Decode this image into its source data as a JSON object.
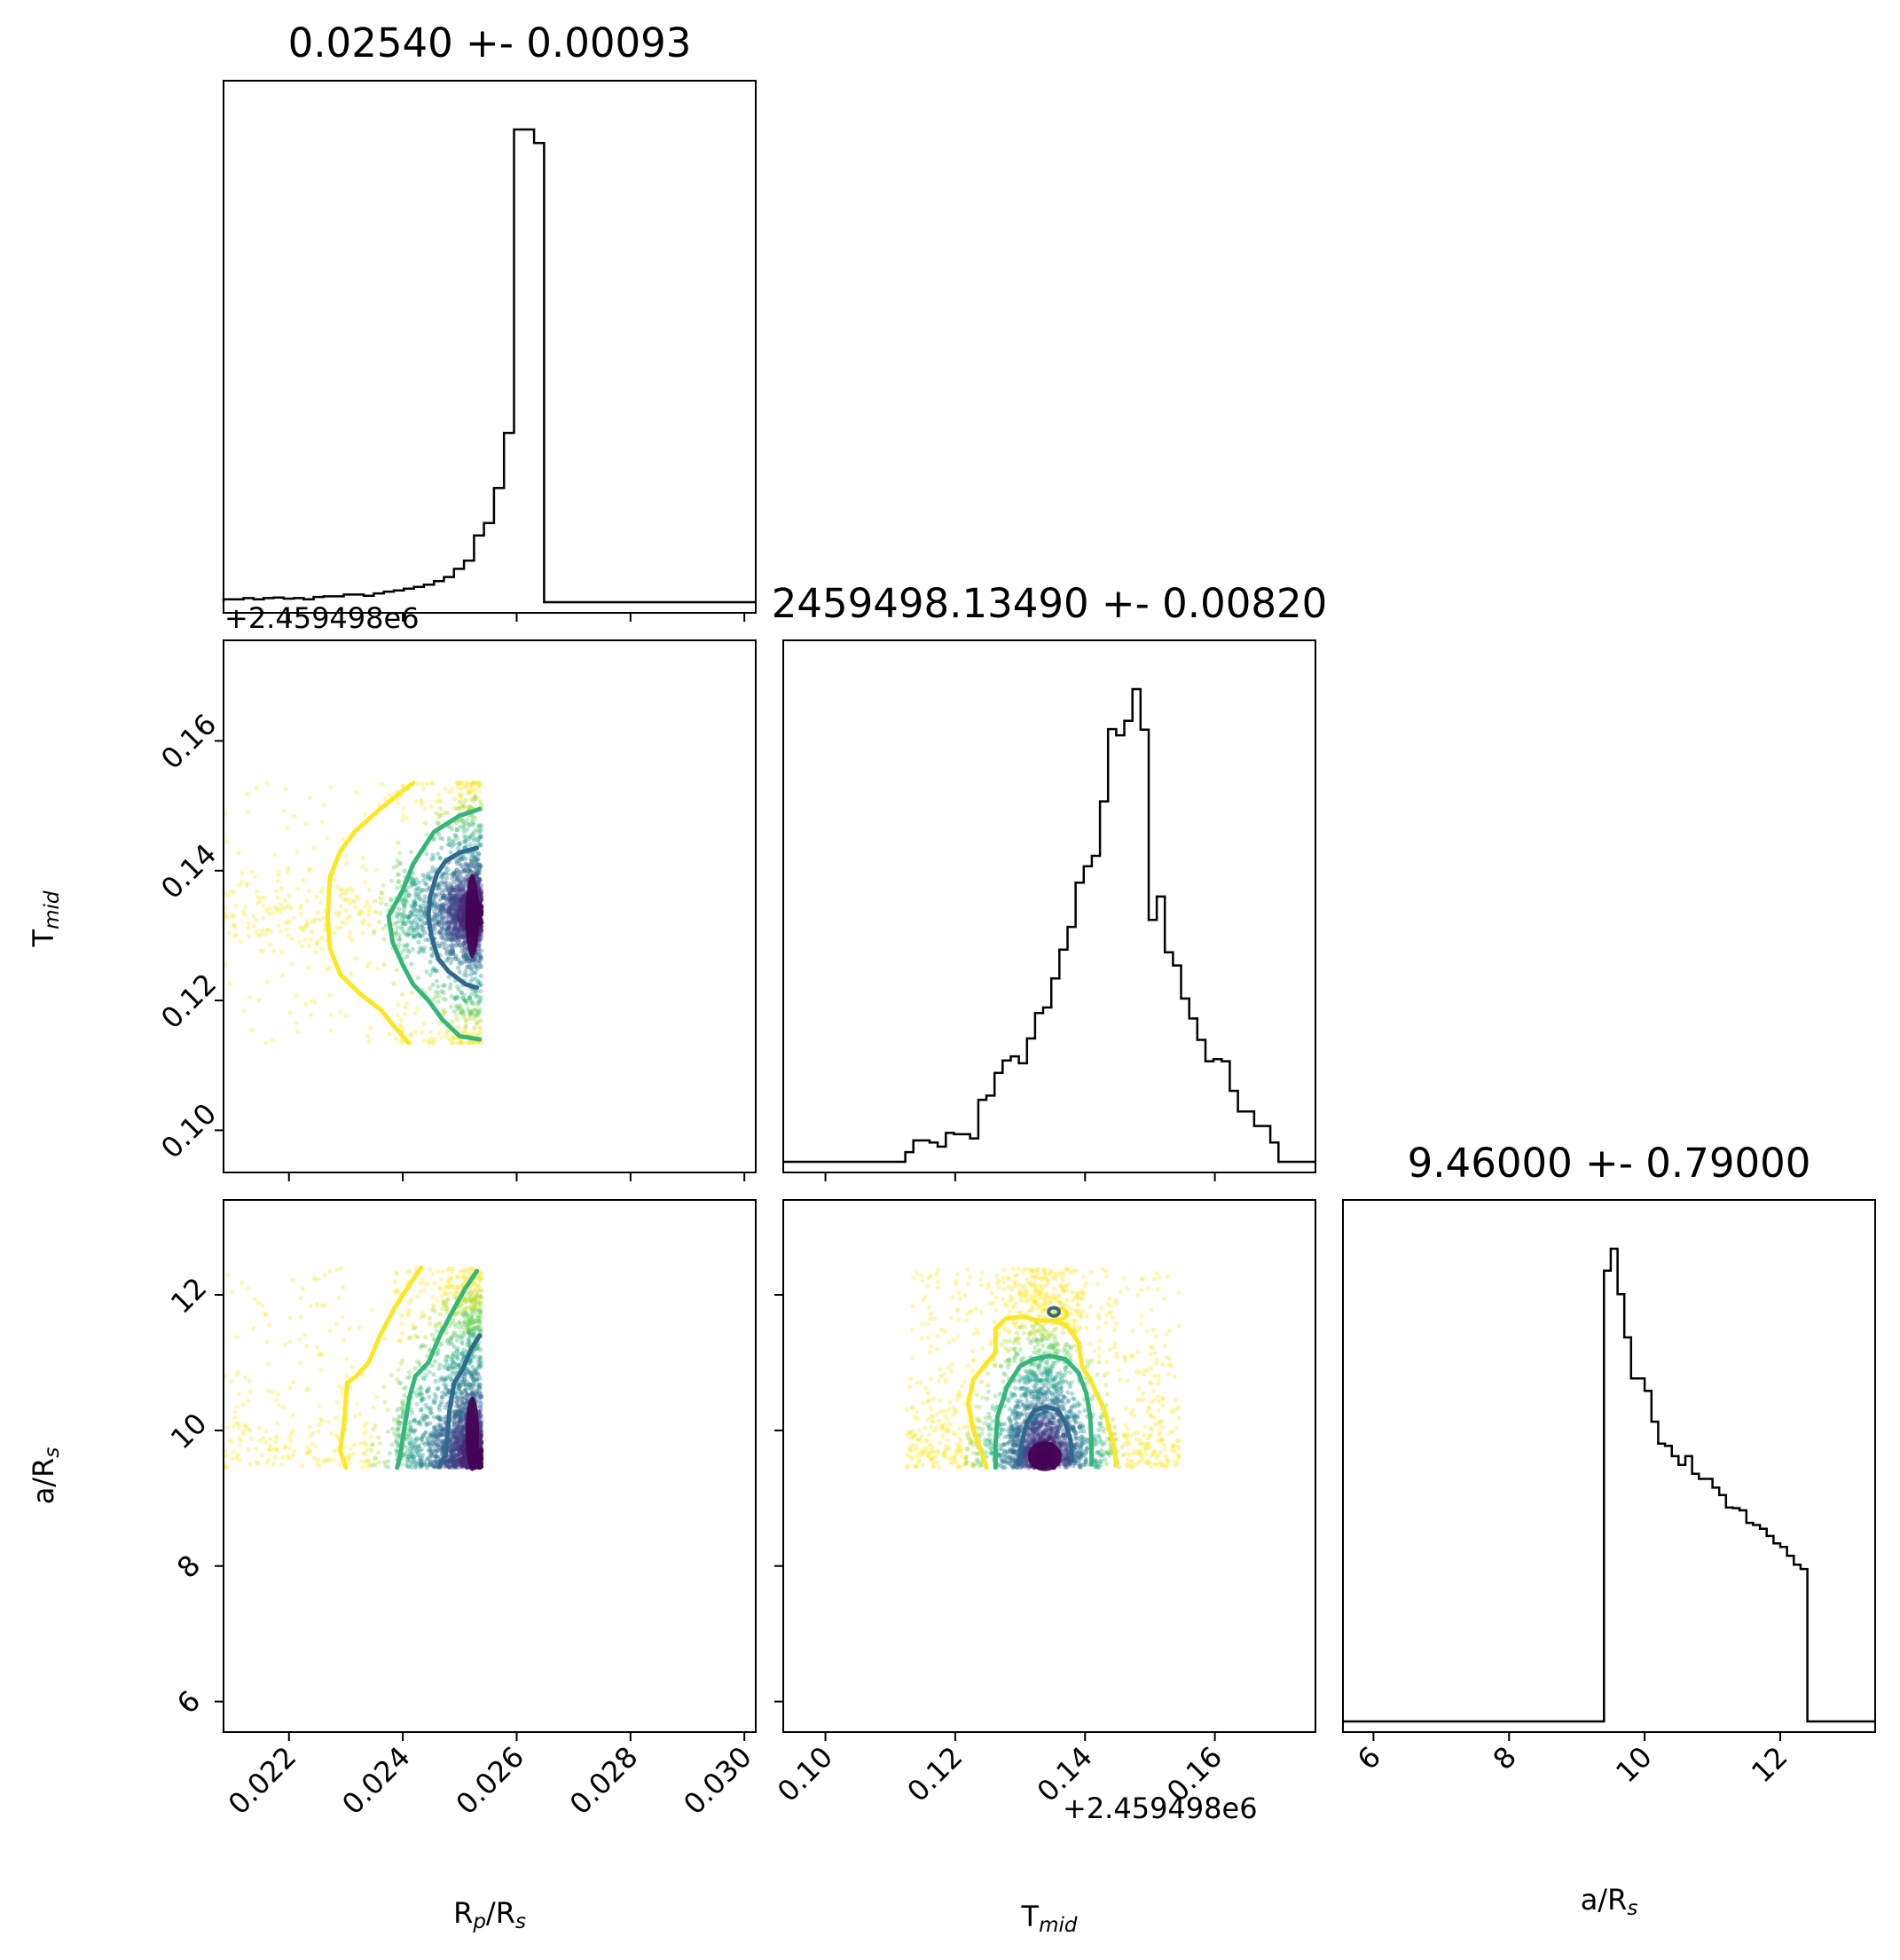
{
  "chart_data": {
    "type": "corner",
    "parameters": [
      {
        "name": "Rp/Rs",
        "label_main": "R",
        "label_sub": "p",
        "label_tail": "/R",
        "label_sub2": "s"
      },
      {
        "name": "Tmid",
        "label_main": "T",
        "label_sub": "mid",
        "label_tail": "",
        "label_sub2": ""
      },
      {
        "name": "a/Rs",
        "label_main": "a/R",
        "label_sub": "s",
        "label_tail": "",
        "label_sub2": ""
      }
    ],
    "titles": [
      "0.02540 +- 0.00093",
      "2459498.13490 +- 0.00820",
      "9.46000 +- 0.79000"
    ],
    "ranges": [
      [
        0.02085,
        0.0302
      ],
      [
        0.0935,
        0.1755
      ],
      [
        5.55,
        13.4
      ]
    ],
    "ticks": [
      [
        "0.022",
        "0.024",
        "0.026",
        "0.028",
        "0.030"
      ],
      [
        "0.10",
        "0.12",
        "0.14",
        "0.16"
      ],
      [
        "6",
        "8",
        "10",
        "12"
      ]
    ],
    "offset_text": "+2.459498e6",
    "hist_1": {
      "edges_start": 0.02085,
      "bin_width": 0.000176,
      "counts": [
        0.5,
        0.5,
        0.7,
        0.5,
        0.7,
        0.8,
        0.6,
        0.7,
        0.5,
        0.9,
        1.0,
        1.0,
        1.3,
        1.3,
        1.1,
        1.5,
        1.8,
        2.0,
        2.3,
        2.6,
        3.0,
        3.6,
        4.3,
        5.7,
        7.1,
        11.4,
        13.5,
        19.5,
        28.9,
        80.7,
        80.7,
        78.4
      ]
    },
    "hist_2": {
      "edges_start": 0.1123,
      "bin_width": 0.00125,
      "counts": [
        1.4,
        3.1,
        3.1,
        2.8,
        2.2,
        4.2,
        4.0,
        4.0,
        3.4,
        9.0,
        9.6,
        12.9,
        14.7,
        15.3,
        14.3,
        17.9,
        21.6,
        22.4,
        26.6,
        30.8,
        34.1,
        40.5,
        42.9,
        44.4,
        52.3,
        62.8,
        61.9,
        64.0,
        68.6,
        62.7,
        35.1,
        38.5,
        30.4,
        28.5,
        23.7,
        20.8,
        17.7,
        14.6,
        14.9,
        14.6,
        10.3,
        7.3,
        7.3,
        5.2,
        5.2,
        2.8
      ]
    },
    "hist_3": {
      "edges_start": 9.4,
      "bin_width": 0.1,
      "counts": [
        61.5,
        64.5,
        58.3,
        52.4,
        46.8,
        46.8,
        45.1,
        40.9,
        37.9,
        37.6,
        36.2,
        35.0,
        36.2,
        33.8,
        33.1,
        33.1,
        31.9,
        30.9,
        29.2,
        29.1,
        28.8,
        27.1,
        26.8,
        26.3,
        25.3,
        24.3,
        23.8,
        22.6,
        21.4,
        20.8
      ]
    },
    "contour_rp_tmid": [
      {
        "level": "outer",
        "color": "#fde725",
        "points": [
          [
            0.02418,
            0.1535
          ],
          [
            0.02395,
            0.152
          ],
          [
            0.0236,
            0.1495
          ],
          [
            0.02315,
            0.146
          ],
          [
            0.0229,
            0.143
          ],
          [
            0.02272,
            0.139
          ],
          [
            0.02268,
            0.133
          ],
          [
            0.02272,
            0.128
          ],
          [
            0.0229,
            0.124
          ],
          [
            0.02325,
            0.121
          ],
          [
            0.02362,
            0.1185
          ],
          [
            0.02385,
            0.116
          ],
          [
            0.0241,
            0.1135
          ]
        ]
      },
      {
        "level": "middle",
        "color": "#35b779",
        "points": [
          [
            0.02535,
            0.1495
          ],
          [
            0.025,
            0.1485
          ],
          [
            0.02455,
            0.146
          ],
          [
            0.0244,
            0.144
          ],
          [
            0.02418,
            0.141
          ],
          [
            0.024,
            0.137
          ],
          [
            0.02375,
            0.133
          ],
          [
            0.02382,
            0.129
          ],
          [
            0.024,
            0.1255
          ],
          [
            0.02418,
            0.1225
          ],
          [
            0.02445,
            0.12
          ],
          [
            0.0247,
            0.117
          ],
          [
            0.025,
            0.1145
          ],
          [
            0.02535,
            0.114
          ]
        ]
      },
      {
        "level": "inner",
        "color": "#31688e",
        "points": [
          [
            0.0253,
            0.1435
          ],
          [
            0.025,
            0.1428
          ],
          [
            0.02475,
            0.1415
          ],
          [
            0.0246,
            0.1395
          ],
          [
            0.02448,
            0.136
          ],
          [
            0.02445,
            0.133
          ],
          [
            0.0245,
            0.13
          ],
          [
            0.02462,
            0.1265
          ],
          [
            0.0248,
            0.1245
          ],
          [
            0.0251,
            0.1225
          ],
          [
            0.0253,
            0.122
          ]
        ]
      }
    ],
    "contour_rp_a": [
      {
        "level": "outer",
        "color": "#fde725",
        "points": [
          [
            0.02432,
            12.4
          ],
          [
            0.02408,
            12.1
          ],
          [
            0.02385,
            11.8
          ],
          [
            0.0236,
            11.4
          ],
          [
            0.0234,
            11.0
          ],
          [
            0.02318,
            10.8
          ],
          [
            0.02302,
            10.7
          ],
          [
            0.02298,
            10.2
          ],
          [
            0.0229,
            9.7
          ],
          [
            0.023,
            9.45
          ]
        ]
      },
      {
        "level": "middle",
        "color": "#35b779",
        "points": [
          [
            0.0253,
            12.35
          ],
          [
            0.0251,
            12.1
          ],
          [
            0.0249,
            11.8
          ],
          [
            0.02465,
            11.4
          ],
          [
            0.02445,
            11.0
          ],
          [
            0.02422,
            10.8
          ],
          [
            0.02412,
            10.5
          ],
          [
            0.02402,
            10.0
          ],
          [
            0.02395,
            9.6
          ],
          [
            0.0239,
            9.45
          ]
        ]
      },
      {
        "level": "inner",
        "color": "#31688e",
        "points": [
          [
            0.02535,
            11.4
          ],
          [
            0.0252,
            11.2
          ],
          [
            0.02505,
            10.9
          ],
          [
            0.0249,
            10.7
          ],
          [
            0.02482,
            10.3
          ],
          [
            0.02478,
            9.9
          ],
          [
            0.02475,
            9.65
          ],
          [
            0.02465,
            9.48
          ]
        ]
      }
    ],
    "contour_tmid_a": [
      {
        "level": "outer",
        "color": "#fde725",
        "points": [
          [
            0.1248,
            9.45
          ],
          [
            0.124,
            9.7
          ],
          [
            0.1228,
            10.0
          ],
          [
            0.122,
            10.4
          ],
          [
            0.1228,
            10.75
          ],
          [
            0.1245,
            10.95
          ],
          [
            0.1262,
            11.15
          ],
          [
            0.1262,
            11.5
          ],
          [
            0.1278,
            11.65
          ],
          [
            0.1305,
            11.68
          ],
          [
            0.1328,
            11.62
          ],
          [
            0.135,
            11.62
          ],
          [
            0.1372,
            11.55
          ],
          [
            0.139,
            11.3
          ],
          [
            0.1395,
            10.95
          ],
          [
            0.1408,
            10.75
          ],
          [
            0.142,
            10.5
          ],
          [
            0.143,
            10.3
          ],
          [
            0.1438,
            10.0
          ],
          [
            0.1445,
            9.75
          ],
          [
            0.1448,
            9.5
          ]
        ]
      },
      {
        "level": "middle",
        "color": "#35b779",
        "points": [
          [
            0.1262,
            9.45
          ],
          [
            0.1262,
            9.8
          ],
          [
            0.1265,
            10.2
          ],
          [
            0.128,
            10.65
          ],
          [
            0.13,
            10.95
          ],
          [
            0.132,
            11.05
          ],
          [
            0.1345,
            11.1
          ],
          [
            0.137,
            11.05
          ],
          [
            0.139,
            10.85
          ],
          [
            0.1402,
            10.55
          ],
          [
            0.1408,
            10.2
          ],
          [
            0.141,
            9.8
          ],
          [
            0.141,
            9.5
          ]
        ]
      },
      {
        "level": "inner",
        "color": "#31688e",
        "points": [
          [
            0.1298,
            9.5
          ],
          [
            0.1302,
            9.8
          ],
          [
            0.131,
            10.1
          ],
          [
            0.1322,
            10.3
          ],
          [
            0.134,
            10.35
          ],
          [
            0.1358,
            10.3
          ],
          [
            0.137,
            10.1
          ],
          [
            0.1378,
            9.85
          ],
          [
            0.138,
            9.55
          ]
        ]
      }
    ],
    "small_contour_tmid_a": {
      "color": "#fde725",
      "center": [
        0.1362,
        11.72
      ],
      "r": [
        0.001,
        0.08
      ]
    },
    "small_contour_tmid_a_2": {
      "color": "#31688e",
      "center": [
        0.1352,
        11.75
      ],
      "r": [
        0.0008,
        0.06
      ]
    },
    "scatter_support": {
      "rp": [
        0.02085,
        0.02538
      ],
      "tmid": [
        0.1135,
        0.1535
      ],
      "a": [
        9.45,
        12.4
      ],
      "tmid_sample_range": [
        0.1125,
        0.1545
      ],
      "a_scatter_range": [
        9.42,
        12.38
      ]
    },
    "colormap": [
      "#fde725",
      "#b5de2b",
      "#6ece58",
      "#35b779",
      "#1f9e89",
      "#26828e",
      "#31688e",
      "#3e4989",
      "#482878",
      "#440154"
    ]
  }
}
